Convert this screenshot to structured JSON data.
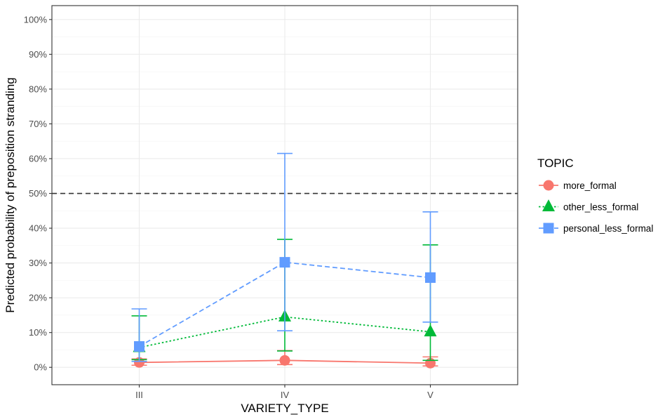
{
  "chart_data": {
    "type": "line",
    "xlabel": "VARIETY_TYPE",
    "ylabel": "Predicted probability of preposition stranding",
    "categories": [
      "III",
      "IV",
      "V"
    ],
    "ylim": [
      -0.05,
      1.04
    ],
    "yticks": [
      0,
      0.1,
      0.2,
      0.3,
      0.4,
      0.5,
      0.6,
      0.7,
      0.8,
      0.9,
      1.0
    ],
    "ytick_labels": [
      "0%",
      "10%",
      "20%",
      "30%",
      "40%",
      "50%",
      "60%",
      "70%",
      "80%",
      "90%",
      "100%"
    ],
    "reference_line": {
      "y": 0.5,
      "style": "dashed",
      "color": "#333333"
    },
    "grid": true,
    "legend": {
      "title": "TOPIC",
      "position": "right"
    },
    "series": [
      {
        "name": "more_formal",
        "color": "#F8766D",
        "marker": "circle",
        "line_style": "solid",
        "values": [
          0.014,
          0.02,
          0.012
        ],
        "lower": [
          0.006,
          0.008,
          0.004
        ],
        "upper": [
          0.024,
          0.048,
          0.03
        ]
      },
      {
        "name": "other_less_formal",
        "color": "#00BA38",
        "marker": "triangle",
        "line_style": "dotted",
        "values": [
          0.057,
          0.145,
          0.102
        ],
        "lower": [
          0.022,
          0.047,
          0.02
        ],
        "upper": [
          0.148,
          0.368,
          0.352
        ]
      },
      {
        "name": "personal_less_formal",
        "color": "#619CFF",
        "marker": "square",
        "line_style": "dashed",
        "values": [
          0.06,
          0.302,
          0.258
        ],
        "lower": [
          0.017,
          0.105,
          0.13
        ],
        "upper": [
          0.168,
          0.615,
          0.447
        ]
      }
    ]
  }
}
